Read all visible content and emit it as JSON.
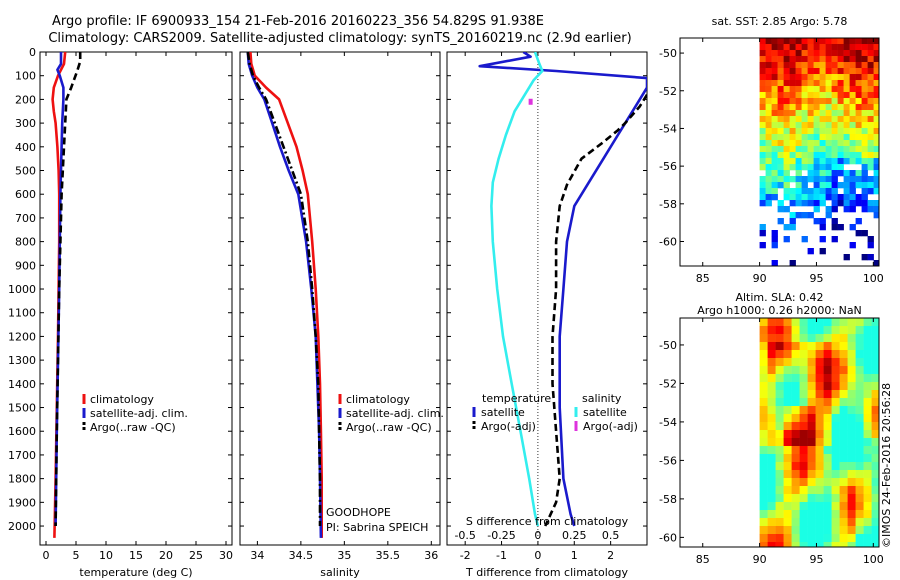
{
  "header": {
    "title_line1": "Argo profile: IF 6900933_154 21-Feb-2016 20160223_356 54.829S 91.938E",
    "title_line2": "Climatology: CARS2009. Satellite-adjusted climatology: synTS_20160219.nc (2.9d earlier)"
  },
  "colors": {
    "climatology": "#ee1111",
    "satellite": "#1a1acc",
    "argo": "#000000",
    "satellite_s": "#33eeee",
    "argo_s": "#dd33dd"
  },
  "chart_data": [
    {
      "id": "temperature",
      "type": "line",
      "xlabel": "temperature (deg C)",
      "ylabel": "",
      "xlim": [
        -1,
        31
      ],
      "ylim": [
        2080,
        0
      ],
      "xticks": [
        0,
        5,
        10,
        15,
        20,
        25,
        30
      ],
      "xtick_labels": [
        "0",
        "5",
        "10",
        "15",
        "20",
        "25",
        "30"
      ],
      "yticks": [
        0,
        100,
        200,
        300,
        400,
        500,
        600,
        700,
        800,
        900,
        1000,
        1100,
        1200,
        1300,
        1400,
        1500,
        1600,
        1700,
        1800,
        1900,
        2000
      ],
      "ytick_labels": [
        "0",
        "100",
        "200",
        "300",
        "400",
        "500",
        "600",
        "700",
        "800",
        "900",
        "1000",
        "1100",
        "1200",
        "1300",
        "1400",
        "1500",
        "1600",
        "1700",
        "1800",
        "1900",
        "2000"
      ],
      "legend": [
        "climatology",
        "satellite-adj. clim.",
        "Argo(..raw -QC)"
      ],
      "series": [
        {
          "name": "climatology",
          "style": "solid",
          "color_key": "climatology",
          "x": [
            3.2,
            3.0,
            2.0,
            1.3,
            1.1,
            1.3,
            1.6,
            1.9,
            2.1,
            2.2,
            2.2,
            2.1,
            2.0,
            1.8,
            1.6,
            1.4
          ],
          "y": [
            0,
            50,
            100,
            150,
            200,
            250,
            300,
            400,
            500,
            600,
            800,
            1000,
            1200,
            1500,
            1800,
            2050
          ]
        },
        {
          "name": "satellite-adj. clim.",
          "style": "solid",
          "color_key": "satellite",
          "x": [
            2.5,
            2.5,
            1.9,
            2.3,
            2.9,
            2.9,
            2.7,
            2.6,
            2.5,
            2.4,
            2.3,
            2.2,
            2.0,
            1.8,
            1.6
          ],
          "y": [
            0,
            50,
            75,
            100,
            150,
            200,
            300,
            400,
            500,
            600,
            800,
            1000,
            1300,
            1600,
            2000
          ]
        },
        {
          "name": "Argo(..raw -QC)",
          "style": "dashed",
          "color_key": "argo",
          "x": [
            5.7,
            5.7,
            5.2,
            4.2,
            3.4,
            3.3,
            3.2,
            3.0,
            2.8,
            2.6,
            2.4,
            2.2,
            2.0,
            1.8,
            1.6
          ],
          "y": [
            0,
            40,
            80,
            150,
            200,
            250,
            300,
            400,
            500,
            600,
            800,
            1000,
            1300,
            1600,
            2000
          ]
        }
      ]
    },
    {
      "id": "salinity",
      "type": "line",
      "xlabel": "salinity",
      "xlim": [
        33.8,
        36.1
      ],
      "ylim": [
        2080,
        0
      ],
      "xticks": [
        34,
        34.5,
        35,
        35.5,
        36
      ],
      "xtick_labels": [
        "34",
        "34.5",
        "35",
        "35.5",
        "36"
      ],
      "yticks": [
        0,
        100,
        200,
        300,
        400,
        500,
        600,
        700,
        800,
        900,
        1000,
        1100,
        1200,
        1300,
        1400,
        1500,
        1600,
        1700,
        1800,
        1900,
        2000
      ],
      "legend": [
        "climatology",
        "satellite-adj. clim.",
        "Argo(..raw -QC)"
      ],
      "annotations": [
        "GOODHOPE",
        "PI: Sabrina SPEICH"
      ],
      "series": [
        {
          "name": "climatology",
          "style": "solid",
          "color_key": "climatology",
          "x": [
            33.92,
            33.93,
            33.97,
            34.1,
            34.25,
            34.35,
            34.45,
            34.52,
            34.58,
            34.63,
            34.67,
            34.7,
            34.72,
            34.73,
            34.74,
            34.74
          ],
          "y": [
            0,
            50,
            100,
            150,
            200,
            300,
            400,
            500,
            600,
            800,
            1000,
            1200,
            1400,
            1600,
            1800,
            2050
          ]
        },
        {
          "name": "satellite-adj. clim.",
          "style": "solid",
          "color_key": "satellite",
          "x": [
            33.89,
            33.9,
            33.94,
            34.0,
            34.08,
            34.17,
            34.26,
            34.36,
            34.47,
            34.56,
            34.62,
            34.67,
            34.69,
            34.71,
            34.72,
            34.73
          ],
          "y": [
            0,
            50,
            100,
            150,
            200,
            300,
            400,
            500,
            600,
            800,
            1000,
            1200,
            1400,
            1600,
            1800,
            2050
          ]
        },
        {
          "name": "Argo(..raw -QC)",
          "style": "dashdot",
          "color_key": "argo",
          "x": [
            33.89,
            33.91,
            33.95,
            34.02,
            34.1,
            34.2,
            34.3,
            34.4,
            34.5,
            34.58,
            34.63,
            34.67,
            34.7,
            34.71,
            34.72,
            34.72
          ],
          "y": [
            0,
            50,
            100,
            150,
            200,
            300,
            400,
            500,
            600,
            800,
            1000,
            1200,
            1400,
            1600,
            1800,
            2000
          ]
        }
      ]
    },
    {
      "id": "difference",
      "type": "line",
      "xlabel": "T difference from climatology",
      "x2label": "S difference from climatology",
      "xlim": [
        -2.5,
        3.0
      ],
      "ylim": [
        2080,
        0
      ],
      "xticks": [
        -2,
        -1,
        0,
        1,
        2
      ],
      "xtick_labels": [
        "-2",
        "-1",
        "0",
        "1",
        "2"
      ],
      "x2ticks": [
        -0.5,
        -0.25,
        0,
        0.25,
        0.5
      ],
      "x2tick_labels": [
        "-0.5",
        "-0.25",
        "0",
        "0.25",
        "0.5"
      ],
      "x2lim": [
        -0.625,
        0.75
      ],
      "yticks": [
        0,
        100,
        200,
        300,
        400,
        500,
        600,
        700,
        800,
        900,
        1000,
        1100,
        1200,
        1300,
        1400,
        1500,
        1600,
        1700,
        1800,
        1900,
        2000
      ],
      "legend_titles": [
        "temperature",
        "salinity"
      ],
      "legend": [
        "satellite",
        "Argo(-adj)",
        "satellite",
        "Argo(-adj)"
      ],
      "series": [
        {
          "name": "T satellite",
          "style": "solid",
          "color_key": "satellite",
          "x": [
            -0.4,
            -0.2,
            -1.6,
            0.5,
            3.0,
            3.0,
            2.6,
            2.2,
            1.8,
            1.4,
            1.0,
            0.8,
            0.7,
            0.6,
            0.6,
            0.7,
            0.9,
            1.0
          ],
          "y": [
            0,
            20,
            60,
            80,
            110,
            150,
            250,
            350,
            450,
            550,
            650,
            800,
            1000,
            1200,
            1500,
            1800,
            1950,
            2000
          ]
        },
        {
          "name": "T Argo(-adj)",
          "style": "dashed",
          "color_key": "argo",
          "x": [
            3.0,
            2.8,
            2.4,
            2.2,
            1.8,
            1.2,
            0.8,
            0.6,
            0.5,
            0.5,
            0.4,
            0.4,
            0.5,
            0.6,
            0.5,
            0.2
          ],
          "y": [
            180,
            230,
            300,
            330,
            380,
            450,
            560,
            650,
            800,
            1000,
            1200,
            1400,
            1600,
            1800,
            1900,
            2000
          ]
        },
        {
          "name": "S satellite",
          "style": "solid",
          "color_key": "satellite_s",
          "x": [
            -0.02,
            0.01,
            0.03,
            -0.03,
            -0.09,
            -0.16,
            -0.22,
            -0.27,
            -0.31,
            -0.32,
            -0.31,
            -0.28,
            -0.24,
            -0.18,
            -0.12,
            -0.06,
            -0.02,
            0.0
          ],
          "y": [
            0,
            50,
            80,
            120,
            180,
            250,
            350,
            450,
            550,
            650,
            800,
            1000,
            1200,
            1400,
            1600,
            1800,
            1950,
            2000
          ]
        },
        {
          "name": "S Argo(-adj)",
          "style": "dots",
          "color_key": "argo_s",
          "x": [
            -0.05
          ],
          "y": [
            210
          ]
        }
      ]
    },
    {
      "id": "sst_map",
      "type": "heatmap",
      "title": "sat. SST: 2.85 Argo: 5.78",
      "xlim": [
        83,
        100.5
      ],
      "ylim": [
        -61.3,
        -49.2
      ],
      "xticks": [
        85,
        90,
        95,
        100
      ],
      "xtick_labels": [
        "85",
        "90",
        "95",
        "100"
      ],
      "yticks": [
        -50,
        -52,
        -54,
        -56,
        -58,
        -60
      ],
      "ytick_labels": [
        "-50",
        "-52",
        "-54",
        "-56",
        "-58",
        "-60"
      ],
      "data_extent_lon": [
        90,
        100.5
      ]
    },
    {
      "id": "sla_map",
      "type": "heatmap",
      "title_line1": "Altim. SLA: 0.42",
      "title_line2": "Argo h1000: 0.26 h2000: NaN",
      "xlim": [
        83,
        100.5
      ],
      "ylim": [
        -60.5,
        -48.6
      ],
      "xticks": [
        85,
        90,
        95,
        100
      ],
      "xtick_labels": [
        "85",
        "90",
        "95",
        "100"
      ],
      "yticks": [
        -50,
        -52,
        -54,
        -56,
        -58,
        -60
      ],
      "ytick_labels": [
        "-50",
        "-52",
        "-54",
        "-56",
        "-58",
        "-60"
      ],
      "data_extent_lon": [
        90,
        100.5
      ],
      "side_text": "©IMOS 24-Feb-2016 20:56:28"
    }
  ]
}
